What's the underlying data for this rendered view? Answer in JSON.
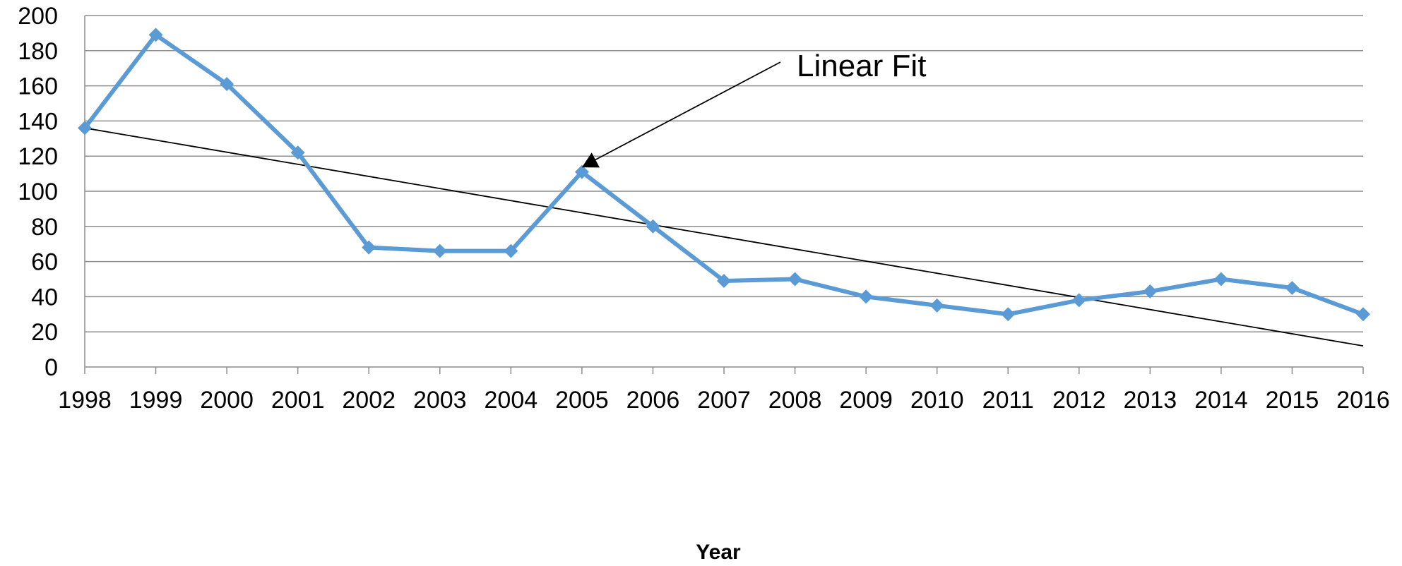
{
  "chart_data": {
    "type": "line",
    "title": "",
    "xlabel": "Year",
    "ylabel": "",
    "ylim": [
      0,
      200
    ],
    "yticks": [
      "0",
      "20",
      "40",
      "60",
      "80",
      "100",
      "120",
      "140",
      "160",
      "180",
      "200"
    ],
    "categories": [
      "1998",
      "1999",
      "2000",
      "2001",
      "2002",
      "2003",
      "2004",
      "2005",
      "2006",
      "2007",
      "2008",
      "2009",
      "2010",
      "2011",
      "2012",
      "2013",
      "2014",
      "2015",
      "2016"
    ],
    "series": [
      {
        "values": [
          136,
          189,
          161,
          122,
          68,
          66,
          66,
          111,
          80,
          49,
          50,
          40,
          35,
          30,
          38,
          43,
          50,
          45,
          30
        ],
        "color": "#5b9bd5",
        "marker": "diamond"
      }
    ],
    "trendline": {
      "type": "linear",
      "start": 136,
      "end": 12,
      "color": "#000000"
    },
    "annotation": {
      "text": "Linear Fit",
      "target_category": "2005",
      "target_value": 112
    },
    "grid": true,
    "legend": "none"
  }
}
